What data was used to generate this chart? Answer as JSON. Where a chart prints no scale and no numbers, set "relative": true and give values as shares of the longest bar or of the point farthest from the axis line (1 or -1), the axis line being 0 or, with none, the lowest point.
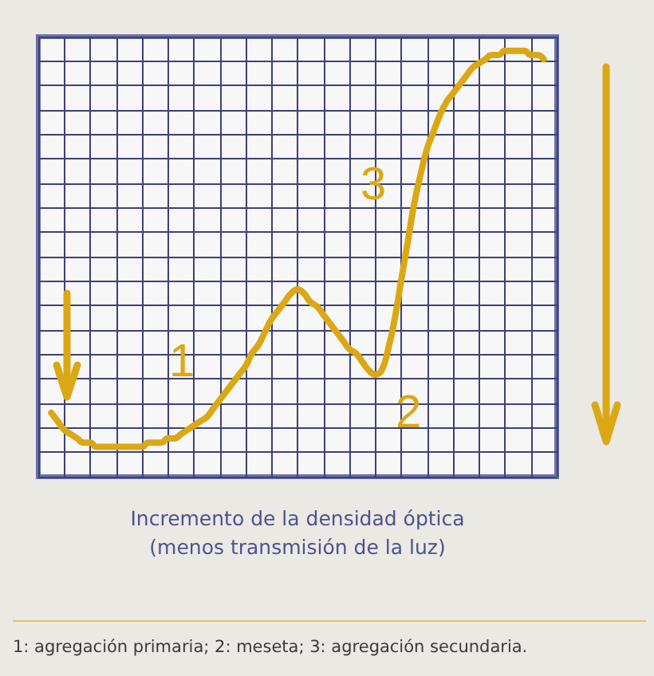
{
  "chart_data": {
    "type": "line",
    "xlabel": "Incremento de la densidad óptica\n(menos transmisión de la luz)",
    "annotations": [
      "1",
      "2",
      "3",
      "1: agregación primaria; 2: meseta; 3: agregación secundaria."
    ],
    "relative": true,
    "grid": true,
    "color": "#dba815",
    "categories": [
      null,
      null,
      null,
      null,
      null,
      null,
      null,
      null,
      null,
      null,
      null,
      null,
      null,
      null,
      null,
      null,
      null,
      null,
      null,
      null,
      null,
      null,
      null,
      null,
      null,
      null,
      null,
      null,
      null,
      null,
      null,
      null,
      null,
      null,
      null,
      null,
      null,
      null,
      null,
      null,
      null,
      null,
      null,
      null,
      null,
      null,
      null,
      null,
      null,
      null,
      null,
      null,
      null,
      null,
      null,
      null,
      null,
      null,
      null,
      null,
      null,
      null,
      null,
      null,
      null,
      null,
      null,
      null,
      null,
      null,
      null,
      null,
      null,
      null,
      null,
      null,
      null,
      null,
      null,
      null,
      null
    ],
    "values": [
      null,
      null,
      0.15,
      0.13,
      0.11,
      0.1,
      0.09,
      0.08,
      0.08,
      0.07,
      0.07,
      0.07,
      0.07,
      0.07,
      0.07,
      0.07,
      0.07,
      0.08,
      0.08,
      0.08,
      0.09,
      0.09,
      0.1,
      0.11,
      0.12,
      0.13,
      0.14,
      0.16,
      0.18,
      0.2,
      0.22,
      0.24,
      0.26,
      0.29,
      0.31,
      0.34,
      0.37,
      0.39,
      0.41,
      0.43,
      0.44,
      0.43,
      0.41,
      0.4,
      0.38,
      0.36,
      0.34,
      0.32,
      0.3,
      0.29,
      0.27,
      0.25,
      0.24,
      0.25,
      0.3,
      0.37,
      0.46,
      0.55,
      0.64,
      0.71,
      0.77,
      0.81,
      0.85,
      0.88,
      0.9,
      0.92,
      0.94,
      0.96,
      0.97,
      0.98,
      0.99,
      0.99,
      1.0,
      1.0,
      1.0,
      1.0,
      0.99,
      0.99,
      0.98,
      null,
      null
    ]
  }
}
